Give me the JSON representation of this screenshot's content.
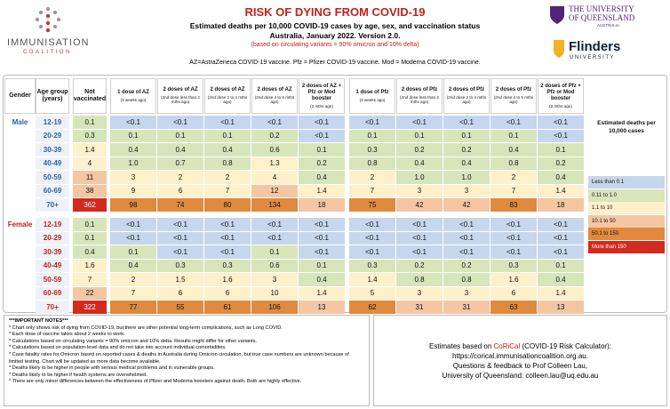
{
  "header": {
    "logo_name": "IMMUNISATION",
    "logo_sub": "COALITION",
    "title": "RISK OF DYING FROM COVID-19",
    "subtitle_1": "Estimated deaths per 10,000 COVID-19 cases by age, sex, and vaccination status",
    "subtitle_2": "Australia, January 2022.  Version 2.0.",
    "variants": "(based on circulating variants = 90% omicron and 10% delta)",
    "abbreviations": "AZ=AstraZeneca COVID-19 vaccine.  Pfz = Pfizer COVID-19 vaccine. Mod = Moderna COVID-19 vaccine.",
    "uq_line_1": "THE UNIVERSITY",
    "uq_line_2": "OF QUEENSLAND",
    "uq_line_3": "AUSTRALIA",
    "flinders_name": "Flinders",
    "flinders_sub": "UNIVERSITY"
  },
  "table": {
    "columns": {
      "gender": "Gender",
      "age": "Age group (years)",
      "not_vaccinated": "Not vaccinated",
      "az": [
        {
          "title": "1 dose of AZ",
          "sub": "(3 weeks ago)"
        },
        {
          "title": "2 doses of AZ",
          "sub": "(2nd dose less than 2 mths ago)"
        },
        {
          "title": "2 doses of AZ",
          "sub": "(2nd dose 2 to 4 mths ago)"
        },
        {
          "title": "2 doses of AZ",
          "sub": "(2nd dose 4 to 6 mths ago)"
        },
        {
          "title": "2 doses of AZ + Pfz or Mod booster",
          "sub": "(2 mths ago)"
        }
      ],
      "pfz": [
        {
          "title": "1 dose of Pfz",
          "sub": "(3 weeks ago)"
        },
        {
          "title": "2 doses of Pfz",
          "sub": "(2nd dose less than 2 mths ago)"
        },
        {
          "title": "2 doses of Pfz",
          "sub": "(2nd dose 2 to 4 mths ago)"
        },
        {
          "title": "2 doses of Pfz",
          "sub": "(2nd dose 4 to 6 mths ago)"
        },
        {
          "title": "2 doses of Pfz + Pfz or Mod booster",
          "sub": "(2 mths ago)"
        }
      ]
    },
    "sections": [
      {
        "gender": "Male",
        "rows": [
          {
            "age": "12-19",
            "not_vaccinated": "0.1",
            "az": [
              "<0.1",
              "<0.1",
              "<0.1",
              "<0.1",
              "<0.1"
            ],
            "pfz": [
              "<0.1",
              "<0.1",
              "<0.1",
              "<0.1",
              "<0.1"
            ]
          },
          {
            "age": "20-29",
            "not_vaccinated": "0.3",
            "az": [
              "0.1",
              "0.1",
              "0.1",
              "0.2",
              "<0.1"
            ],
            "pfz": [
              "0.1",
              "0.1",
              "0.1",
              "0.1",
              "<0.1"
            ]
          },
          {
            "age": "30-39",
            "not_vaccinated": "1.4",
            "az": [
              "0.4",
              "0.4",
              "0.4",
              "0.6",
              "0.1"
            ],
            "pfz": [
              "0.3",
              "0.2",
              "0.2",
              "0.4",
              "0.1"
            ]
          },
          {
            "age": "40-49",
            "not_vaccinated": "4",
            "az": [
              "1.0",
              "0.7",
              "0.8",
              "1.3",
              "0.2"
            ],
            "pfz": [
              "0.8",
              "0.4",
              "0.4",
              "0.8",
              "0.2"
            ]
          },
          {
            "age": "50-59",
            "not_vaccinated": "11",
            "az": [
              "3",
              "2",
              "2",
              "4",
              "0.4"
            ],
            "pfz": [
              "2",
              "1.0",
              "1.0",
              "2",
              "0.4"
            ]
          },
          {
            "age": "60-69",
            "not_vaccinated": "38",
            "az": [
              "9",
              "6",
              "7",
              "12",
              "1.4"
            ],
            "pfz": [
              "7",
              "3",
              "3",
              "7",
              "1.4"
            ]
          },
          {
            "age": "70+",
            "not_vaccinated": "362",
            "az": [
              "98",
              "74",
              "80",
              "134",
              "18"
            ],
            "pfz": [
              "75",
              "42",
              "42",
              "83",
              "18"
            ]
          }
        ]
      },
      {
        "gender": "Female",
        "rows": [
          {
            "age": "12-19",
            "not_vaccinated": "0.1",
            "az": [
              "<0.1",
              "<0.1",
              "<0.1",
              "<0.1",
              "<0.1"
            ],
            "pfz": [
              "<0.1",
              "<0.1",
              "<0.1",
              "<0.1",
              "<0.1"
            ]
          },
          {
            "age": "20-29",
            "not_vaccinated": "0.1",
            "az": [
              "<0.1",
              "<0.1",
              "<0.1",
              "<0.1",
              "<0.1"
            ],
            "pfz": [
              "<0.1",
              "<0.1",
              "<0.1",
              "<0.1",
              "<0.1"
            ]
          },
          {
            "age": "30-39",
            "not_vaccinated": "0.4",
            "az": [
              "0.1",
              "<0.1",
              "<0.1",
              "0.1",
              "<0.1"
            ],
            "pfz": [
              "<0.1",
              "<0.1",
              "<0.1",
              "<0.1",
              "<0.1"
            ]
          },
          {
            "age": "40-49",
            "not_vaccinated": "1.6",
            "az": [
              "0.4",
              "0.3",
              "0.3",
              "0.6",
              "0.1"
            ],
            "pfz": [
              "0.3",
              "0.2",
              "0.2",
              "0.3",
              "0.1"
            ]
          },
          {
            "age": "50-59",
            "not_vaccinated": "7",
            "az": [
              "2",
              "1.5",
              "1.6",
              "3",
              "0.4"
            ],
            "pfz": [
              "1.4",
              "0.8",
              "0.8",
              "1.6",
              "0.4"
            ]
          },
          {
            "age": "60-69",
            "not_vaccinated": "22",
            "az": [
              "7",
              "6",
              "6",
              "10",
              "1.4"
            ],
            "pfz": [
              "5",
              "3",
              "3",
              "6",
              "1.4"
            ]
          },
          {
            "age": "70+",
            "not_vaccinated": "322",
            "az": [
              "77",
              "55",
              "61",
              "106",
              "13"
            ],
            "pfz": [
              "62",
              "31",
              "31",
              "63",
              "13"
            ]
          }
        ]
      }
    ]
  },
  "legend": {
    "title": "Estimated deaths per 10,000 cases",
    "items": [
      {
        "label": "Less than 0.1",
        "color": "#c6d6ec"
      },
      {
        "label": "0.11 to 1.0",
        "color": "#d7e5bb"
      },
      {
        "label": "1.1 to 10",
        "color": "#fdf0cb"
      },
      {
        "label": "10.1 to 50",
        "color": "#f4c6a3"
      },
      {
        "label": "50.1 to 150",
        "color": "#df8a3e"
      },
      {
        "label": "More than 150",
        "color": "#d42a1e"
      }
    ]
  },
  "notes": {
    "heading": "***IMPORTANT NOTES***",
    "items": [
      "* Chart only shows risk of dying from COVID-19, but there are other potential long-term complications, such as Long COVID.",
      "* Each dose of vaccine takes about 2 weeks to work.",
      "* Calculations based on circulating variants = 90% omicron and 10% delta. Results might differ for other variants.",
      "* Calculations based on population-level data and do not take into account individual comorbidities.",
      "* Case fatality rates for Omicron based on reported cases & deaths in Australia during Omicron circulation, but true case numbers are unknown because of limited testing.  Chart will be updated as more data become available.",
      "* Deaths likely to be higher in people with serious medical problems and in vulnerable groups.",
      "* Deaths likely to be higher if health systems are overwhelmed.",
      "* There are only minor differences between the effectiveness of Pfizer and Moderna boosters against death. Both are highly effective."
    ]
  },
  "contact": {
    "prefix": "Estimates based on ",
    "tool": "CoRiCal",
    "suffix": " (COVID-19 Risk Calculator):",
    "url": "https://corical.immunisationcoalition.org.au.",
    "feedback": "Questions & feedback to Prof Colleen Lau,",
    "email": "University of Queensland: colleen.lau@uq.edu.au"
  }
}
